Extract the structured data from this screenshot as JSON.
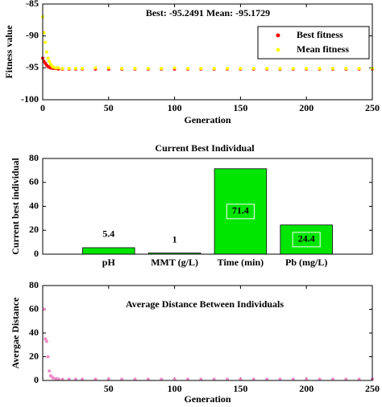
{
  "chart_data": [
    {
      "type": "scatter",
      "title": "Best: -95.2491 Mean: -95.1729",
      "x_label": "Generation",
      "y_label": "Fitness value",
      "xlim": [
        0,
        250
      ],
      "xticks": [
        0,
        50,
        100,
        150,
        200,
        250
      ],
      "ylim": [
        -100,
        -85
      ],
      "yticks": [
        -100,
        -95,
        -90,
        -85
      ],
      "legend": "top-right",
      "x": [
        0,
        1,
        2,
        3,
        4,
        5,
        6,
        7,
        8,
        10,
        12,
        15,
        20,
        25,
        30,
        40,
        50,
        60,
        70,
        80,
        90,
        100,
        110,
        120,
        130,
        140,
        150,
        160,
        170,
        180,
        190,
        200,
        210,
        220,
        230,
        240,
        250
      ],
      "series": [
        {
          "name": "Best fitness",
          "color": "#ff0000",
          "values": [
            -93.5,
            -94,
            -94.3,
            -94.6,
            -94.8,
            -94.9,
            -95,
            -95,
            -95.1,
            -95.1,
            -95.2,
            -95.2,
            -95.2,
            -95.2,
            -95.2,
            -95.2,
            -95.2,
            -95.2,
            -95.2,
            -95.2,
            -95.2,
            -95.2,
            -95.2,
            -95.2,
            -95.2,
            -95.2,
            -95.2,
            -95.2,
            -95.2,
            -95.2,
            -95.2,
            -95.2,
            -95.2,
            -95.2,
            -95.2,
            -95.2,
            -95.2
          ]
        },
        {
          "name": "Mean fitness",
          "color": "#ffff00",
          "values": [
            -87,
            -89.5,
            -91,
            -92.5,
            -93.5,
            -94,
            -94.4,
            -94.7,
            -94.9,
            -95,
            -95,
            -95.1,
            -95.1,
            -95.1,
            -95.1,
            -95,
            -95,
            -95.1,
            -95.1,
            -95.1,
            -95.1,
            -95,
            -95.1,
            -95.1,
            -95.1,
            -95.1,
            -95.1,
            -95.1,
            -95.1,
            -95.1,
            -95.1,
            -95.1,
            -95.1,
            -95.1,
            -95.1,
            -95.1,
            -95.1
          ]
        }
      ]
    },
    {
      "type": "bar",
      "title": "Current Best Individual",
      "y_label": "Current best individual",
      "categories": [
        "pH",
        "MMT (g/L)",
        "Time (min)",
        "Pb (mg/L)"
      ],
      "values": [
        5.4,
        1,
        71.4,
        24.4
      ],
      "color": "#00e600",
      "ylim": [
        0,
        80
      ],
      "yticks": [
        0,
        20,
        40,
        60,
        80
      ]
    },
    {
      "type": "scatter",
      "title": "Average Distance Between Individuals",
      "x_label": "Generation",
      "y_label": "Avergae Distance",
      "xlim": [
        0,
        250
      ],
      "xticks": [
        50,
        100,
        150,
        200,
        250
      ],
      "ylim": [
        0,
        80
      ],
      "yticks": [
        0,
        20,
        40,
        60,
        80
      ],
      "x": [
        1,
        2,
        3,
        4,
        5,
        6,
        7,
        8,
        10,
        12,
        15,
        20,
        25,
        30,
        40,
        50,
        60,
        70,
        80,
        90,
        100,
        110,
        120,
        130,
        140,
        150,
        160,
        170,
        180,
        190,
        200,
        210,
        220,
        230,
        240,
        250
      ],
      "series": [
        {
          "color": "#f08cc8",
          "values": [
            60,
            35,
            33,
            20,
            8,
            4,
            3,
            2,
            1.5,
            1.2,
            1,
            1,
            1,
            1,
            1,
            1.2,
            1,
            1,
            1,
            1,
            1,
            1,
            1,
            1,
            1,
            1,
            1,
            1,
            1,
            1,
            1,
            1,
            1,
            1,
            1,
            1.2
          ]
        }
      ]
    }
  ]
}
